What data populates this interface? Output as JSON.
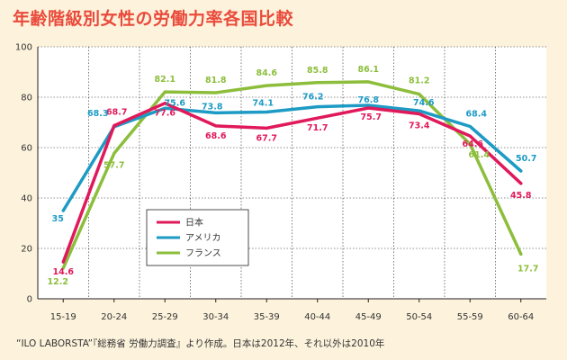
{
  "chart_data": {
    "type": "line",
    "title": "年齢階級別女性の労働力率各国比較",
    "xlabel": "",
    "ylabel": "",
    "categories": [
      "15-19",
      "20-24",
      "25-29",
      "30-34",
      "35-39",
      "40-44",
      "45-49",
      "50-54",
      "55-59",
      "60-64"
    ],
    "ylim": [
      0,
      100
    ],
    "yticks": [
      0,
      20,
      40,
      60,
      80,
      100
    ],
    "grid": true,
    "legend_position": "center-left",
    "series": [
      {
        "name": "日本",
        "color": "#e0195a",
        "values": [
          14.6,
          68.7,
          77.6,
          68.6,
          67.7,
          71.7,
          75.7,
          73.4,
          64.6,
          45.8
        ]
      },
      {
        "name": "アメリカ",
        "color": "#1d9bc4",
        "values": [
          35,
          68.3,
          75.6,
          73.8,
          74.1,
          76.2,
          76.8,
          74.6,
          68.4,
          50.7
        ]
      },
      {
        "name": "フランス",
        "color": "#8cbe3c",
        "values": [
          12.2,
          57.7,
          82.1,
          81.8,
          84.6,
          85.8,
          86.1,
          81.2,
          61.4,
          17.7
        ]
      }
    ],
    "data_label_text": {
      "日本": [
        "14.6",
        "68.7",
        "77.6",
        "68.6",
        "67.7",
        "71.7",
        "75.7",
        "73.4",
        "64.6",
        "45.8"
      ],
      "アメリカ": [
        "35",
        "68.3",
        "75.6",
        "73.8",
        "74.1",
        "76.2",
        "76.8",
        "74.6",
        "68.4",
        "50.7"
      ],
      "フランス": [
        "12.2",
        "57.7",
        "82.1",
        "81.8",
        "84.6",
        "85.8",
        "86.1",
        "81.2",
        "61.4",
        "17.7"
      ]
    },
    "source_note": "“ILO LABORSTA”『総務省 労働力調査』より作成。日本は2012年、それ以外は2010年"
  }
}
